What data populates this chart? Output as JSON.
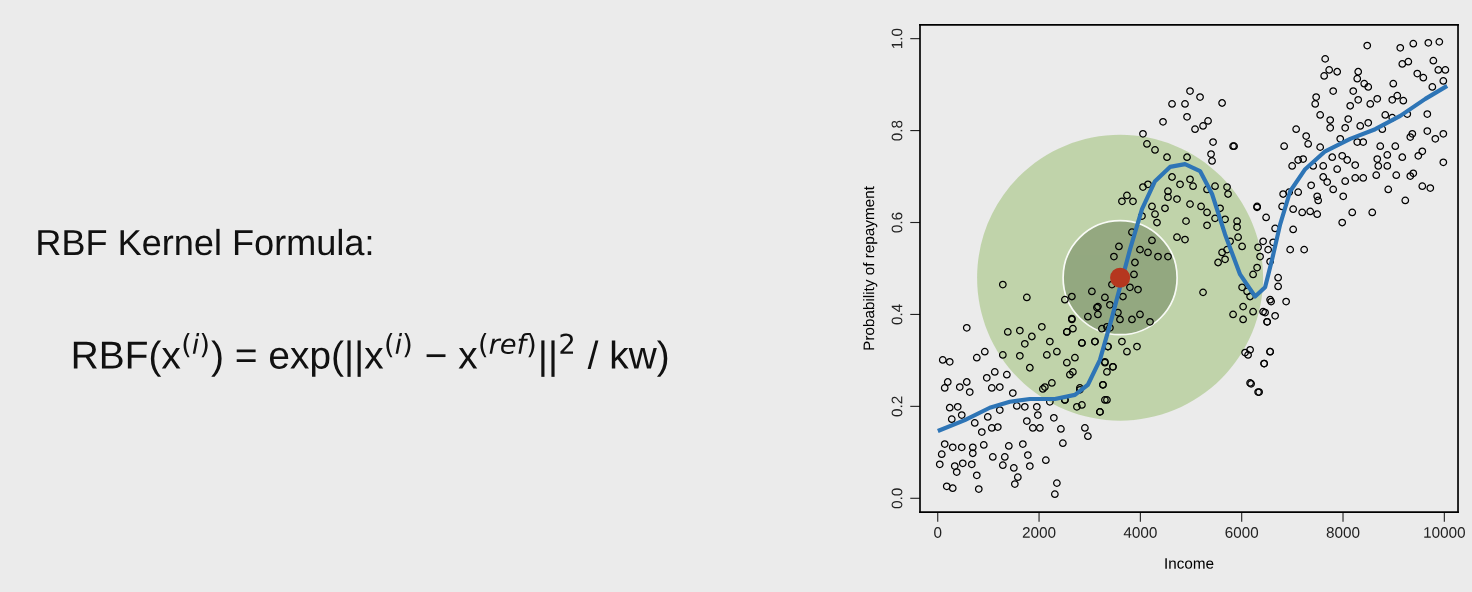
{
  "chart_data": {
    "type": "scatter",
    "xlabel": "Income",
    "ylabel": "Probability of repayment",
    "xlim": [
      -350,
      10270
    ],
    "ylim": [
      -0.03,
      1.03
    ],
    "xticks": [
      0,
      2000,
      4000,
      6000,
      8000,
      10000
    ],
    "yticks": [
      {
        "value": 0,
        "label": "0.0"
      },
      {
        "value": 0.2,
        "label": "0.2"
      },
      {
        "value": 0.4,
        "label": "0.4"
      },
      {
        "value": 0.6,
        "label": "0.6"
      },
      {
        "value": 0.8,
        "label": "0.8"
      },
      {
        "value": 1,
        "label": "1.0"
      }
    ],
    "grid": false,
    "legend": false,
    "marker": "circle",
    "annotations": [
      "RBF Kernel Formula:",
      "RBF(x$^{(i)}$) = exp(||x$^{(i)}$ − x$^{(ref)}$||$^{2}$ / kw)"
    ],
    "series": [
      {
        "color": "#000000",
        "x": [
          573,
          99,
          237,
          929,
          771,
          198,
          138,
          573,
          435,
          632,
          968,
          1067,
          1225,
          1126,
          1364,
          1482,
          237,
          395,
          474,
          277,
          731,
          870,
          988,
          1225,
          1067,
          1186,
          1561,
          1719,
          1956,
          1976,
          1759,
          1877,
          2016,
          2292,
          2431,
          2905,
          2964,
          2470,
          138,
          296,
          474,
          692,
          909,
          79,
          40,
          336,
          375,
          494,
          672,
          692,
          1087,
          1285,
          1324,
          1403,
          1502,
          1680,
          1779,
          1818,
          1581,
          1522,
          771,
          178,
          296,
          810,
          2134,
          2352,
          2312,
          1383,
          1621,
          1858,
          2055,
          2213,
          1719,
          1285,
          1621,
          1818,
          2154,
          2352,
          2549,
          2708,
          2846,
          3103,
          2648,
          2549,
          3142,
          3340,
          3360,
          3300,
          3458,
          3261,
          3300,
          3202,
          2806,
          2747,
          2510,
          2253,
          2075,
          2668,
          4051,
          4130,
          4289,
          4526,
          4921,
          5079,
          5435,
          5830,
          5395,
          5415,
          4447,
          5237,
          4625,
          4980,
          5040,
          4783,
          5316,
          5474,
          5711,
          5731,
          4545,
          4723,
          4545,
          4150,
          4051,
          3735,
          3636,
          3854,
          4229,
          4486,
          4289,
          4328,
          4032,
          4980,
          5198,
          5316,
          5573,
          5474,
          5316,
          4901,
          5672,
          5909,
          5909,
          5929,
          6008,
          5771,
          5711,
          5613,
          5534,
          5672,
          4723,
          4881,
          4229,
          4150,
          4348,
          4545,
          3992,
          3834,
          3577,
          3478,
          3893,
          3874,
          3794,
          3953,
          3656,
          3439,
          3043,
          2648,
          2510,
          3300,
          3162,
          3399,
          2964,
          3162,
          3557,
          3597,
          3834,
          3992,
          4190,
          3399,
          3241,
          2648,
          2549,
          2668,
          3636,
          3735,
          3933,
          3360,
          3103,
          2846,
          3300,
          3458,
          3340,
          3261,
          2806,
          2609,
          3340,
          3202,
          2846,
          2510,
          2213,
          2115,
          6166,
          6067,
          6126,
          5830,
          6028,
          6225,
          6028,
          6166,
          6008,
          6107,
          6225,
          6304,
          6363,
          6324,
          6304,
          6166,
          6324,
          5237,
          6561,
          6423,
          6502,
          6561,
          6443,
          8478,
          9130,
          9387,
          9684,
          9901,
          9783,
          7648,
          7727,
          7885,
          7628,
          8300,
          8281,
          8419,
          8498,
          7806,
          8202,
          9170,
          9289,
          9466,
          9585,
          9763,
          9881,
          10020,
          9980,
          8992,
          9071,
          8972,
          9190,
          8676,
          8538,
          8300,
          8142,
          7470,
          7451,
          7549,
          7747,
          7747,
          8103,
          8043,
          8340,
          8498,
          8834,
          8972,
          9269,
          9664,
          8775,
          9368,
          9664,
          9822,
          9980,
          7075,
          7273,
          6838,
          7312,
          7549,
          7945,
          8281,
          8399,
          8735,
          9032,
          9328,
          7984,
          8083,
          8241,
          7787,
          7609,
          7885,
          8676,
          8874,
          8696,
          8874,
          9170,
          9565,
          9486,
          9980,
          6996,
          7115,
          7213,
          7411,
          7609,
          7688,
          7806,
          8004,
          8043,
          8241,
          8399,
          8656,
          9051,
          9328,
          9387,
          8893,
          9229,
          9565,
          9723,
          7371,
          7490,
          7510,
          7490,
          7984,
          8182,
          8577,
          6818,
          6798,
          7016,
          7194,
          7352,
          6937,
          7115,
          6304,
          6482,
          6660,
          7016,
          6423,
          6621,
          6957,
          7233,
          6522,
          6561,
          6719,
          6719,
          6581,
          6877,
          6462,
          6502,
          6660,
          6561,
          6443,
          6186,
          6344,
          5850,
          4625,
          4881,
          4980,
          5178,
          5613,
          5336,
          4921,
          1285,
          1759
        ],
        "values": [
          0.371,
          0.301,
          0.297,
          0.319,
          0.306,
          0.253,
          0.24,
          0.253,
          0.242,
          0.231,
          0.262,
          0.24,
          0.242,
          0.275,
          0.269,
          0.229,
          0.197,
          0.199,
          0.181,
          0.172,
          0.164,
          0.144,
          0.177,
          0.192,
          0.153,
          0.155,
          0.201,
          0.199,
          0.199,
          0.181,
          0.168,
          0.153,
          0.153,
          0.175,
          0.151,
          0.153,
          0.135,
          0.12,
          0.118,
          0.111,
          0.111,
          0.111,
          0.116,
          0.096,
          0.074,
          0.07,
          0.057,
          0.076,
          0.074,
          0.098,
          0.09,
          0.072,
          0.09,
          0.114,
          0.066,
          0.118,
          0.094,
          0.07,
          0.046,
          0.031,
          0.05,
          0.026,
          0.022,
          0.02,
          0.083,
          0.033,
          0.009,
          0.362,
          0.365,
          0.352,
          0.373,
          0.341,
          0.336,
          0.312,
          0.31,
          0.284,
          0.312,
          0.319,
          0.295,
          0.306,
          0.338,
          0.341,
          0.389,
          0.362,
          0.415,
          0.373,
          0.33,
          0.295,
          0.286,
          0.247,
          0.214,
          0.188,
          0.236,
          0.199,
          0.214,
          0.251,
          0.238,
          0.275,
          0.793,
          0.771,
          0.758,
          0.742,
          0.742,
          0.803,
          0.775,
          0.766,
          0.749,
          0.734,
          0.819,
          0.81,
          0.699,
          0.694,
          0.679,
          0.683,
          0.672,
          0.679,
          0.677,
          0.662,
          0.668,
          0.651,
          0.655,
          0.683,
          0.677,
          0.659,
          0.646,
          0.646,
          0.635,
          0.631,
          0.618,
          0.6,
          0.614,
          0.64,
          0.635,
          0.622,
          0.631,
          0.609,
          0.594,
          0.603,
          0.607,
          0.603,
          0.59,
          0.568,
          0.548,
          0.559,
          0.541,
          0.535,
          0.513,
          0.52,
          0.568,
          0.563,
          0.561,
          0.535,
          0.526,
          0.526,
          0.541,
          0.579,
          0.548,
          0.526,
          0.513,
          0.487,
          0.459,
          0.454,
          0.439,
          0.465,
          0.45,
          0.439,
          0.432,
          0.437,
          0.417,
          0.421,
          0.395,
          0.4,
          0.404,
          0.389,
          0.389,
          0.4,
          0.384,
          0.371,
          0.369,
          0.391,
          0.362,
          0.369,
          0.341,
          0.319,
          0.33,
          0.33,
          0.341,
          0.338,
          0.297,
          0.286,
          0.275,
          0.247,
          0.24,
          0.269,
          0.214,
          0.188,
          0.203,
          0.214,
          0.21,
          0.242,
          0.323,
          0.317,
          0.312,
          0.4,
          0.389,
          0.406,
          0.417,
          0.439,
          0.459,
          0.45,
          0.487,
          0.502,
          0.526,
          0.546,
          0.633,
          0.251,
          0.231,
          0.448,
          0.432,
          0.406,
          0.384,
          0.319,
          0.293,
          0.985,
          0.98,
          0.989,
          0.991,
          0.993,
          0.952,
          0.956,
          0.932,
          0.928,
          0.919,
          0.928,
          0.913,
          0.902,
          0.895,
          0.886,
          0.886,
          0.945,
          0.95,
          0.924,
          0.915,
          0.895,
          0.932,
          0.932,
          0.908,
          0.902,
          0.876,
          0.867,
          0.865,
          0.869,
          0.858,
          0.867,
          0.854,
          0.873,
          0.858,
          0.834,
          0.823,
          0.806,
          0.825,
          0.806,
          0.81,
          0.817,
          0.834,
          0.828,
          0.836,
          0.836,
          0.803,
          0.793,
          0.799,
          0.782,
          0.793,
          0.803,
          0.788,
          0.766,
          0.771,
          0.764,
          0.782,
          0.775,
          0.775,
          0.766,
          0.766,
          0.786,
          0.745,
          0.736,
          0.725,
          0.742,
          0.723,
          0.716,
          0.738,
          0.747,
          0.723,
          0.723,
          0.742,
          0.755,
          0.745,
          0.731,
          0.723,
          0.736,
          0.738,
          0.723,
          0.699,
          0.688,
          0.672,
          0.657,
          0.69,
          0.697,
          0.697,
          0.703,
          0.703,
          0.701,
          0.707,
          0.672,
          0.648,
          0.679,
          0.675,
          0.681,
          0.657,
          0.648,
          0.618,
          0.6,
          0.622,
          0.622,
          0.662,
          0.635,
          0.629,
          0.622,
          0.624,
          0.666,
          0.666,
          0.635,
          0.611,
          0.587,
          0.585,
          0.559,
          0.557,
          0.541,
          0.541,
          0.541,
          0.515,
          0.48,
          0.461,
          0.428,
          0.428,
          0.404,
          0.384,
          0.397,
          0.319,
          0.293,
          0.249,
          0.231,
          0.766,
          0.858,
          0.858,
          0.886,
          0.873,
          0.86,
          0.821,
          0.83,
          0.465,
          0.437
        ]
      },
      {
        "color": "#b5371f",
        "marker": "circle",
        "x": [
          3600
        ],
        "values": [
          0.48
        ]
      },
      {
        "type": "line",
        "color": "#2e75b6",
        "marker": "none",
        "line_style": "solid",
        "x": [
          40,
          534,
          1028,
          1423,
          1818,
          2312,
          2708,
          2964,
          3202,
          3439,
          3597,
          3794,
          4032,
          4289,
          4585,
          4881,
          5178,
          5415,
          5672,
          5968,
          6265,
          6462,
          6601,
          6759,
          6957,
          7253,
          7648,
          8142,
          8636,
          9130,
          9625,
          10020
        ],
        "values": [
          0.148,
          0.17,
          0.197,
          0.21,
          0.216,
          0.216,
          0.225,
          0.247,
          0.301,
          0.393,
          0.459,
          0.541,
          0.629,
          0.69,
          0.721,
          0.727,
          0.712,
          0.662,
          0.574,
          0.487,
          0.439,
          0.459,
          0.52,
          0.596,
          0.668,
          0.716,
          0.755,
          0.782,
          0.803,
          0.832,
          0.869,
          0.895
        ]
      }
    ]
  }
}
